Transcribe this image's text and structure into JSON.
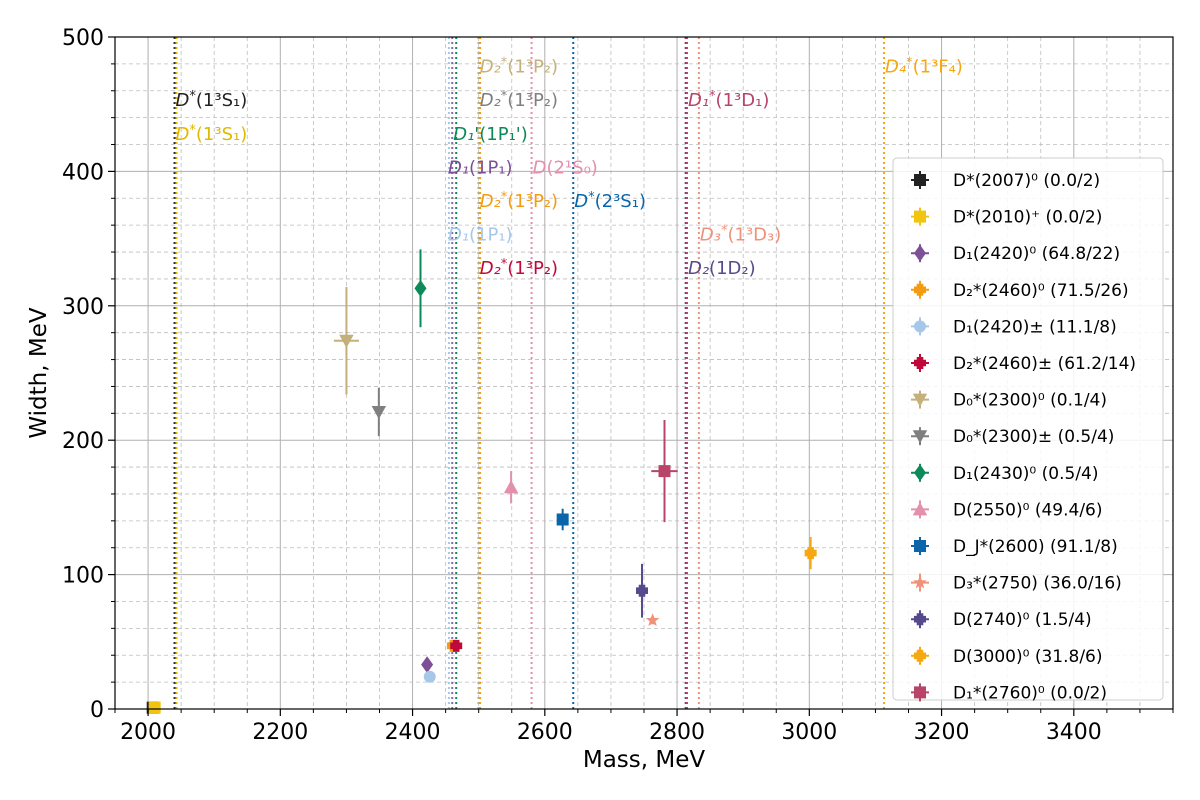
{
  "chart_data": {
    "type": "scatter",
    "title": "",
    "xlabel": "Mass, MeV",
    "ylabel": "Width, MeV",
    "xlim": [
      1950,
      3550
    ],
    "ylim": [
      0,
      500
    ],
    "xticks": [
      2000,
      2200,
      2400,
      2600,
      2800,
      3000,
      3200,
      3400
    ],
    "yticks": [
      0,
      100,
      200,
      300,
      400,
      500
    ],
    "grid": true,
    "legend_position": "right",
    "series": [
      {
        "name": "D*(2007)⁰ (0.0/2)",
        "sup": "",
        "color": "#222222",
        "marker": "square",
        "x": 2007,
        "y": 1,
        "xerr": 0,
        "yerr": 0
      },
      {
        "name": "D*(2010)⁺ (0.0/2)",
        "color": "#f1c40f",
        "marker": "square",
        "x": 2010,
        "y": 1,
        "xerr": 0,
        "yerr": 0
      },
      {
        "name": "D₁(2420)⁰ (64.8/22)",
        "color": "#7e4f96",
        "marker": "diamond",
        "x": 2422,
        "y": 33,
        "xerr": 0,
        "yerr": 5
      },
      {
        "name": "D₂*(2460)⁰ (71.5/26)",
        "color": "#f39c12",
        "marker": "plus",
        "x": 2461,
        "y": 47,
        "xerr": 5,
        "yerr": 3
      },
      {
        "name": "D₁(2420)± (11.1/8)",
        "color": "#a7c7ea",
        "marker": "circle",
        "x": 2426,
        "y": 24,
        "xerr": 0,
        "yerr": 3
      },
      {
        "name": "D₂*(2460)± (61.2/14)",
        "color": "#c0083a",
        "marker": "plus",
        "x": 2466,
        "y": 47,
        "xerr": 4,
        "yerr": 4
      },
      {
        "name": "D₀*(2300)⁰ (0.1/4)",
        "color": "#c4b07a",
        "marker": "triangle-down",
        "x": 2300,
        "y": 274,
        "xerr": 19,
        "yerr": 40
      },
      {
        "name": "D₀*(2300)± (0.5/4)",
        "color": "#7f7f7f",
        "marker": "triangle-down",
        "x": 2349,
        "y": 221,
        "xerr": 0,
        "yerr": 18
      },
      {
        "name": "D₁(2430)⁰ (0.5/4)",
        "color": "#0d8a5a",
        "marker": "diamond",
        "x": 2412,
        "y": 313,
        "xerr": 0,
        "yerr": 29
      },
      {
        "name": "D(2550)⁰ (49.4/6)",
        "color": "#e58fae",
        "marker": "triangle-up",
        "x": 2549,
        "y": 165,
        "xerr": 0,
        "yerr": 12
      },
      {
        "name": "D_J*(2600) (91.1/8)",
        "color": "#0a66a8",
        "marker": "square",
        "x": 2627,
        "y": 141,
        "xerr": 0,
        "yerr": 8
      },
      {
        "name": "D₃*(2750) (36.0/16)",
        "color": "#f0927a",
        "marker": "star",
        "x": 2763,
        "y": 66,
        "xerr": 0,
        "yerr": 3
      },
      {
        "name": "D(2740)⁰ (1.5/4)",
        "color": "#574a8c",
        "marker": "plus",
        "x": 2747,
        "y": 88,
        "xerr": 0,
        "yerr": 20
      },
      {
        "name": "D(3000)⁰ (31.8/6)",
        "color": "#f5a810",
        "marker": "plus",
        "x": 3002,
        "y": 116,
        "xerr": 0,
        "yerr": 12
      },
      {
        "name": "D₁*(2760)⁰ (0.0/2)",
        "color": "#b8446a",
        "marker": "square",
        "x": 2781,
        "y": 177,
        "xerr": 20,
        "yerr": 38
      }
    ],
    "vlines": [
      {
        "x": 2040,
        "color": "#333333"
      },
      {
        "x": 2043,
        "color": "#e0b800"
      },
      {
        "x": 2455,
        "color": "#a7c7ea"
      },
      {
        "x": 2460,
        "color": "#8a6aa8"
      },
      {
        "x": 2466,
        "color": "#0d8a5a"
      },
      {
        "x": 2500,
        "color": "#c0083a"
      },
      {
        "x": 2500,
        "color": "#c4b07a"
      },
      {
        "x": 2502,
        "color": "#7f7f7f"
      },
      {
        "x": 2502,
        "color": "#f39c12"
      },
      {
        "x": 2580,
        "color": "#e58fae"
      },
      {
        "x": 2643,
        "color": "#0a66a8"
      },
      {
        "x": 2813,
        "color": "#574a8c"
      },
      {
        "x": 2815,
        "color": "#b8446a"
      },
      {
        "x": 2833,
        "color": "#f0927a"
      },
      {
        "x": 3113,
        "color": "#f5a810"
      }
    ],
    "annotations": [
      {
        "base": "D",
        "star": true,
        "state": "1³S₁",
        "x": 2040,
        "y": 453,
        "color": "#222222"
      },
      {
        "base": "D",
        "star": true,
        "state": "1³S₁",
        "x": 2040,
        "y": 428,
        "color": "#e0b800"
      },
      {
        "base": "D₂",
        "star": true,
        "state": "1³P₂",
        "x": 2500,
        "y": 478,
        "color": "#c4b07a"
      },
      {
        "base": "D₂",
        "star": true,
        "state": "1³P₂",
        "x": 2500,
        "y": 453,
        "color": "#7f7f7f"
      },
      {
        "base": "D₁'",
        "star": false,
        "state": "1P₁'",
        "x": 2460,
        "y": 428,
        "color": "#0d8a5a"
      },
      {
        "base": "D₁",
        "star": false,
        "state": "1P₁",
        "x": 2452,
        "y": 403,
        "color": "#7e4f96"
      },
      {
        "base": "D",
        "star": false,
        "state": "2¹S₀",
        "x": 2580,
        "y": 403,
        "color": "#e58fae"
      },
      {
        "base": "D₂",
        "star": true,
        "state": "1³P₂",
        "x": 2500,
        "y": 378,
        "color": "#f39c12"
      },
      {
        "base": "D",
        "star": true,
        "state": "2³S₁",
        "x": 2643,
        "y": 378,
        "color": "#0a66a8"
      },
      {
        "base": "D₁",
        "star": false,
        "state": "1P₁",
        "x": 2452,
        "y": 353,
        "color": "#a7c7ea"
      },
      {
        "base": "D₂",
        "star": true,
        "state": "1³P₂",
        "x": 2500,
        "y": 328,
        "color": "#c0083a"
      },
      {
        "base": "D₁",
        "star": true,
        "state": "1³D₁",
        "x": 2815,
        "y": 453,
        "color": "#b8446a"
      },
      {
        "base": "D₃",
        "star": true,
        "state": "1³D₃",
        "x": 2833,
        "y": 353,
        "color": "#f0927a"
      },
      {
        "base": "D₂",
        "star": false,
        "state": "1D₂",
        "x": 2815,
        "y": 328,
        "color": "#574a8c"
      },
      {
        "base": "D₄",
        "star": true,
        "state": "1³F₄",
        "x": 3113,
        "y": 478,
        "color": "#f5a810"
      }
    ]
  }
}
